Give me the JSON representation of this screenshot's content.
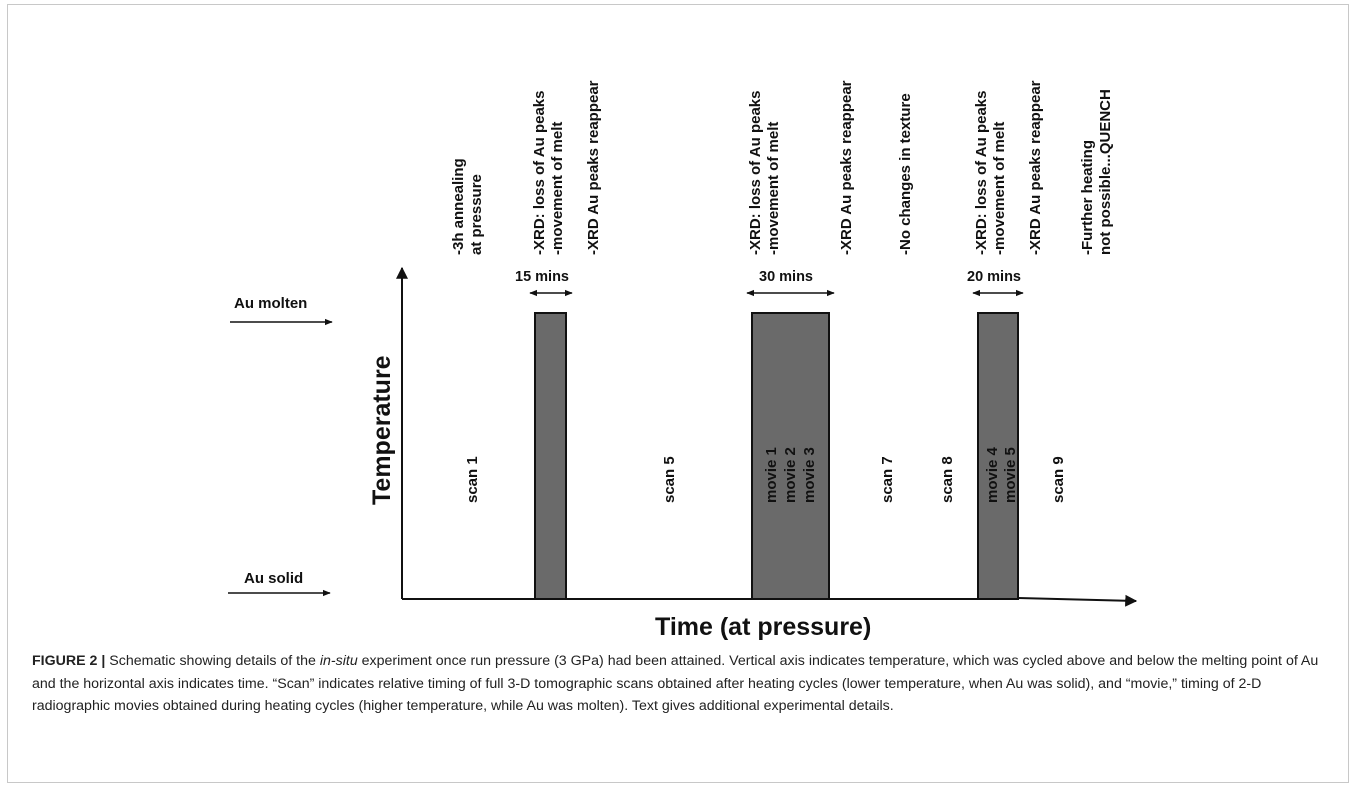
{
  "axes": {
    "y_label": "Temperature",
    "x_label": "Time (at pressure)"
  },
  "states": {
    "molten": "Au molten",
    "solid": "Au solid"
  },
  "durations": [
    "15 mins",
    "30 mins",
    "20 mins"
  ],
  "top_notes": {
    "n1": [
      "-3h annealing",
      "at pressure"
    ],
    "n2": [
      "-XRD: loss of Au peaks",
      "-movement of melt"
    ],
    "n3": "-XRD Au peaks reappear",
    "n4": [
      "-XRD: loss of Au peaks",
      "-movement of melt"
    ],
    "n5": "-XRD Au peaks reappear",
    "n6": "-No changes in texture",
    "n7": [
      "-XRD: loss of Au peaks",
      "-movement of melt"
    ],
    "n8": "-XRD Au peaks reappear",
    "n9": [
      "-Further heating",
      "not possible...QUENCH"
    ]
  },
  "timeline_labels": {
    "scan1": "scan 1",
    "scan5": "scan 5",
    "movies_a": [
      "movie 1",
      "movie 2",
      "movie 3"
    ],
    "scan7": "scan 7",
    "scan8": "scan 8",
    "movies_b": [
      "movie 4",
      "movie 5"
    ],
    "scan9": "scan 9"
  },
  "colors": {
    "pulse_fill": "#6a6a6a",
    "line": "#111111"
  },
  "caption": {
    "label": "FIGURE 2 |",
    "part1": " Schematic showing details of the ",
    "italic": "in-situ",
    "part2": " experiment once run pressure (3 GPa) had been attained. Vertical axis indicates temperature, which was cycled above and below the melting point of Au and the horizontal axis indicates time. “Scan” indicates relative timing of full 3-D tomographic scans obtained after heating cycles (lower temperature, when Au was solid), and “movie,” timing of 2-D radiographic movies obtained during heating cycles (higher temperature, while Au was molten). Text gives additional experimental details."
  }
}
